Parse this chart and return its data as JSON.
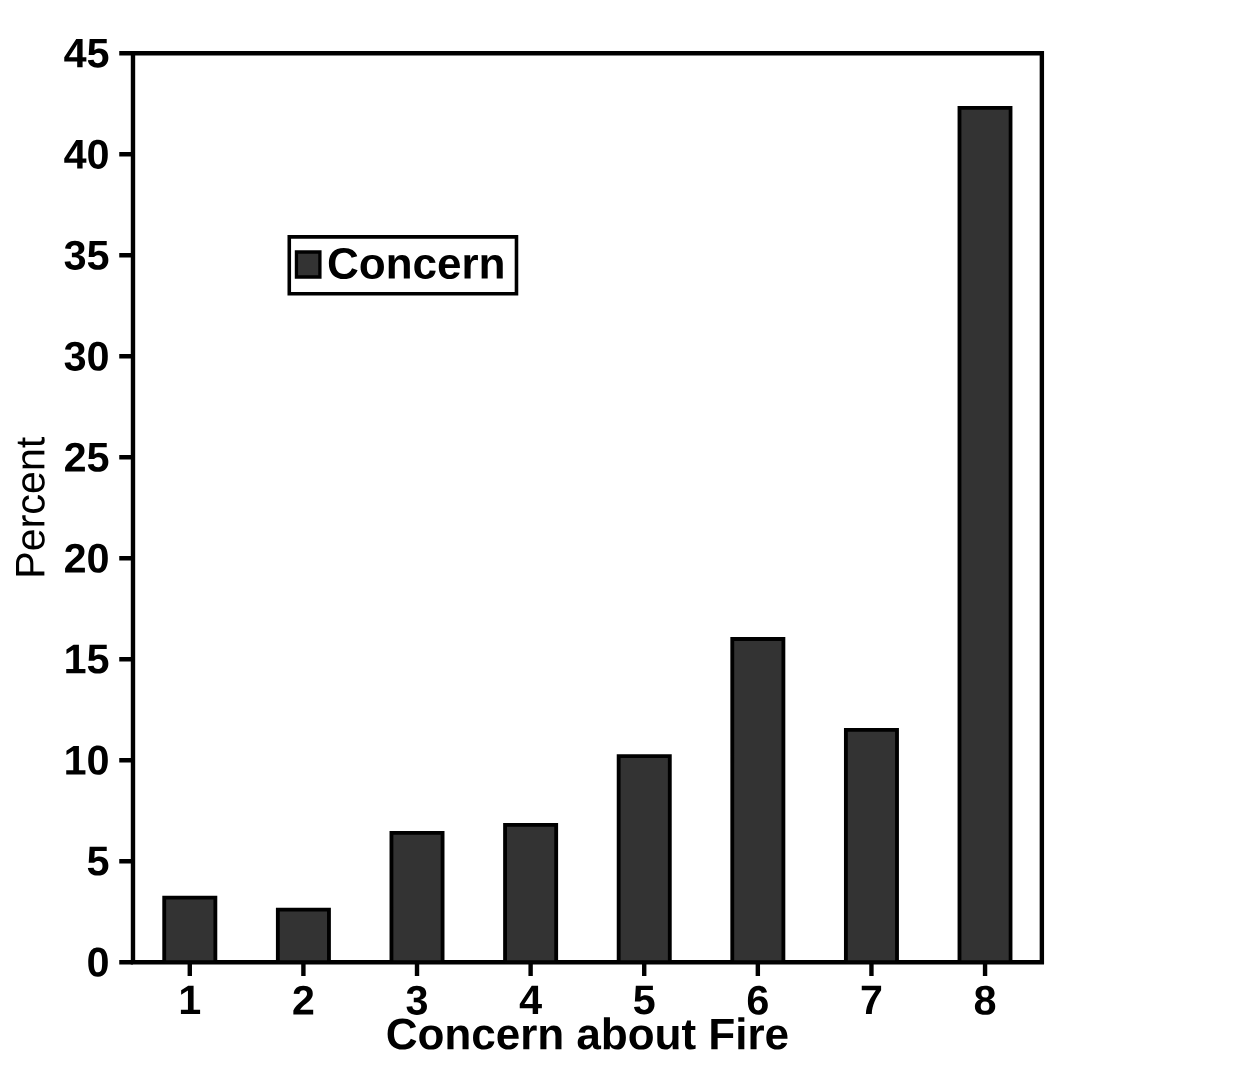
{
  "chart_data": {
    "type": "bar",
    "xlabel": "Concern about Fire",
    "ylabel": "Percent",
    "categories": [
      "1",
      "2",
      "3",
      "4",
      "5",
      "6",
      "7",
      "8"
    ],
    "series": [
      {
        "name": "Concern",
        "color": "#333333",
        "values": [
          3.2,
          2.6,
          6.4,
          6.8,
          10.2,
          16.0,
          11.5,
          42.3
        ]
      }
    ],
    "ylim": [
      0,
      45
    ],
    "yticks": [
      0,
      5,
      10,
      15,
      20,
      25,
      30,
      35,
      40,
      45
    ],
    "legend": "top left",
    "grid": false
  }
}
